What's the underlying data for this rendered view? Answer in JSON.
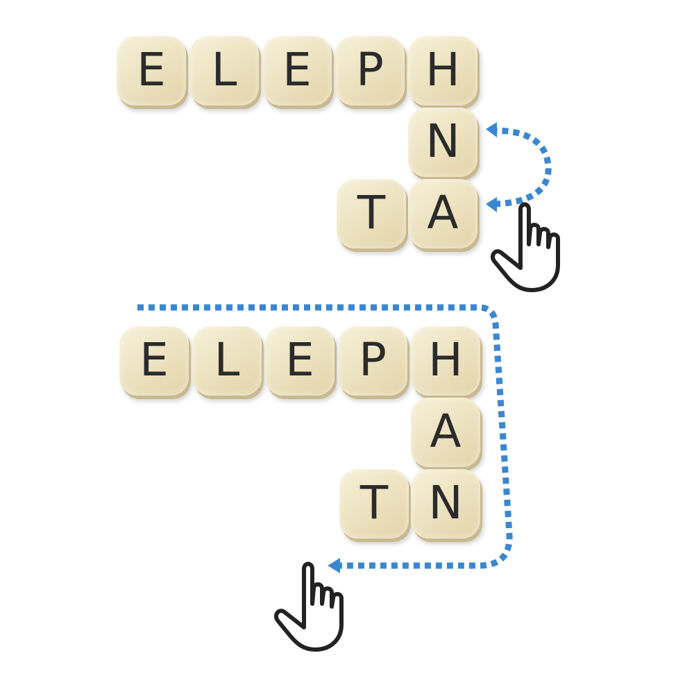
{
  "puzzle_1": {
    "tiles": [
      "E",
      "L",
      "E",
      "P",
      "H",
      "N",
      "T",
      "A"
    ],
    "gesture": "swap-tiles-N-A"
  },
  "puzzle_2": {
    "tiles": [
      "E",
      "L",
      "E",
      "P",
      "H",
      "A",
      "T",
      "N"
    ],
    "gesture": "drag-along-word-path"
  },
  "colors": {
    "tile_face": "#efe5c5",
    "tile_edge": "#c9b98f",
    "letter": "#2b2b2b",
    "arrow": "#3a87d0",
    "hand_outline": "#222222"
  },
  "icons": {
    "hand": "pointing-hand-icon"
  }
}
